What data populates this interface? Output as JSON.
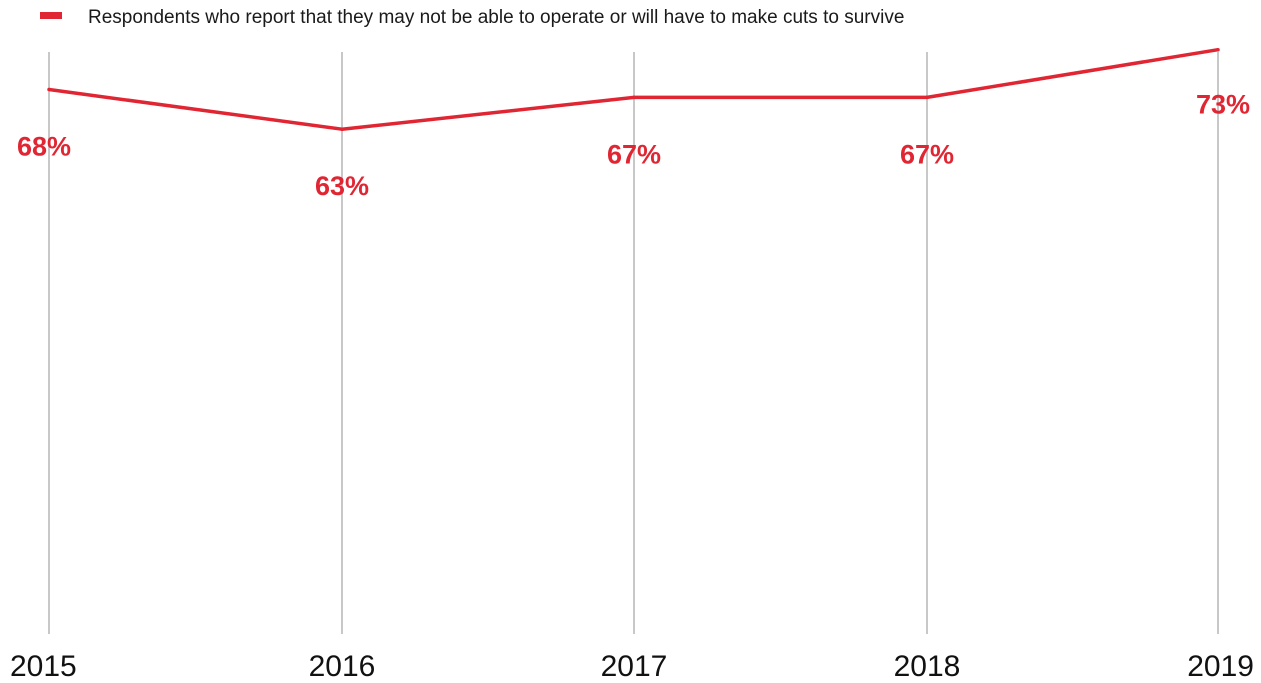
{
  "chart_data": {
    "type": "line",
    "title": "",
    "xlabel": "",
    "ylabel": "",
    "categories": [
      "2015",
      "2016",
      "2017",
      "2018",
      "2019"
    ],
    "series": [
      {
        "name": "Respondents who report that they may not be able to operate or will have to make cuts to survive",
        "values": [
          68,
          63,
          67,
          67,
          73
        ],
        "labels": [
          "68%",
          "63%",
          "67%",
          "67%",
          "73%"
        ]
      }
    ],
    "ylim": [
      0,
      78
    ],
    "grid": "vertical",
    "legend_position": "top-left",
    "colors": {
      "series": "#e02633",
      "grid": "#c8c8c8",
      "text": "#111111"
    }
  }
}
